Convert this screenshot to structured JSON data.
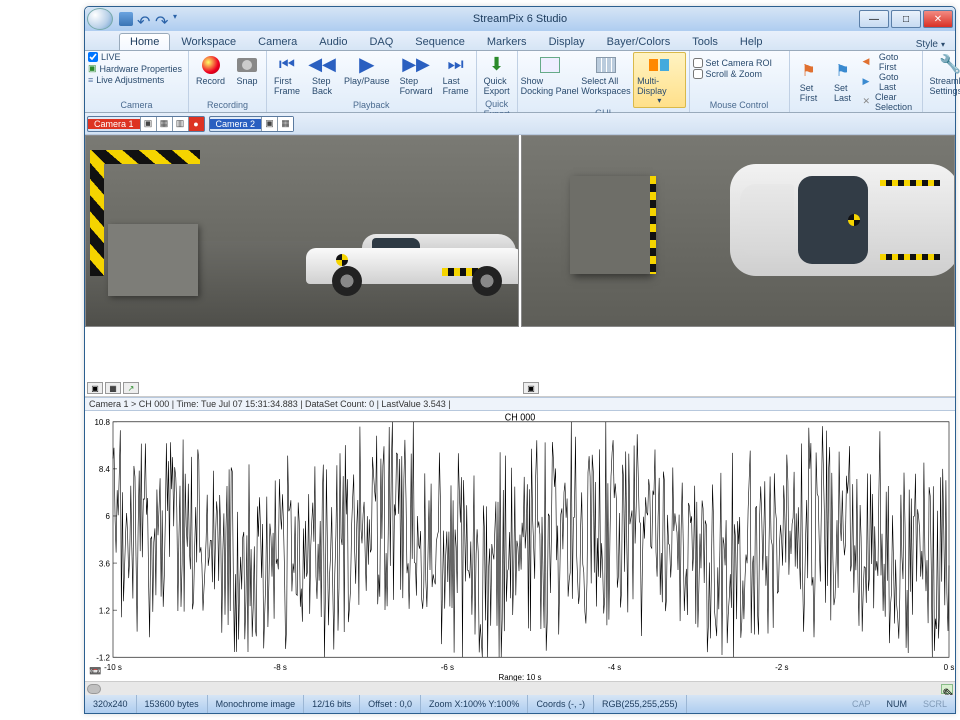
{
  "window": {
    "title": "StreamPix 6 Studio"
  },
  "qat": [
    "save",
    "undo",
    "redo",
    "down"
  ],
  "tabs": [
    "Home",
    "Workspace",
    "Camera",
    "Audio",
    "DAQ",
    "Sequence",
    "Markers",
    "Display",
    "Bayer/Colors",
    "Tools",
    "Help"
  ],
  "active_tab": 0,
  "style_link": "Style",
  "ribbon": {
    "camera": {
      "label": "Camera",
      "live_checked": true,
      "live": "LIVE",
      "hw": "Hardware Properties",
      "adj": "Live Adjustments"
    },
    "recording": {
      "label": "Recording",
      "record": "Record",
      "snap": "Snap"
    },
    "playback": {
      "label": "Playback",
      "first": "First\nFrame",
      "back": "Step\nBack",
      "play": "Play/Pause",
      "fwd": "Step\nForward",
      "last": "Last\nFrame"
    },
    "export": {
      "label": "Quick Export",
      "quick": "Quick\nExport"
    },
    "gui": {
      "label": "GUI",
      "dock": "Show\nDocking Panel",
      "ws": "Select All\nWorkspaces",
      "multi": "Multi-Display"
    },
    "mouse": {
      "label": "Mouse Control",
      "roi": "Set Camera ROI",
      "roi_checked": false,
      "zoom": "Scroll & Zoom",
      "zoom_checked": false
    },
    "selection": {
      "label": "Selection",
      "setfirst": "Set\nFirst",
      "setlast": "Set\nLast",
      "gfirst": "Goto First",
      "glast": "Goto Last",
      "clear": "Clear Selection"
    },
    "settings": {
      "btn": "StreamPix\nSettings"
    }
  },
  "cameras": [
    {
      "name": "Camera 1",
      "color": "red"
    },
    {
      "name": "Camera 2",
      "color": "blue"
    }
  ],
  "graph": {
    "header": "Camera 1 > CH 000 | Time: Tue Jul 07 15:31:34.883 | DataSet Count: 0 | LastValue 3.543 |",
    "title": "CH 000",
    "y_max": 10.8,
    "y_ticks": [
      10.8,
      8.4,
      6.0,
      3.6,
      1.2,
      -1.2
    ],
    "x_ticks": [
      "-10 s",
      "-8 s",
      "-6 s",
      "-4 s",
      "-2 s",
      "0 s"
    ],
    "x_label": "Range: 10 s",
    "line_color": "#000000",
    "bg": "#ffffff",
    "seed_points": 800
  },
  "status": {
    "dims": "320x240",
    "bytes": "153600 bytes",
    "mode": "Monochrome image",
    "bits": "12/16 bits",
    "offset": "Offset : 0,0",
    "zoom": "Zoom X:100%  Y:100%",
    "coords": "Coords (-, -)",
    "rgb": "RGB(255,255,255)",
    "cap": "CAP",
    "num": "NUM",
    "scrl": "SCRL"
  },
  "colors": {
    "title_grad_a": "#d6e5f5",
    "title_grad_b": "#aecdf0",
    "accent_blue": "#2a5fc0",
    "accent_red": "#dd3322",
    "highlight": "#ffe08a"
  }
}
